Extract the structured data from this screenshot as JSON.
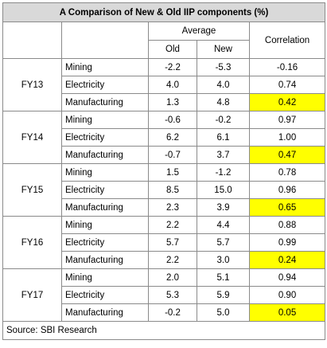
{
  "table": {
    "title": "A Comparison of New & Old IIP components (%)",
    "header": {
      "group_label": "Average",
      "old_label": "Old",
      "new_label": "New",
      "correlation_label": "Correlation"
    },
    "years": [
      {
        "label": "FY13",
        "rows": [
          {
            "component": "Mining",
            "old": "-2.2",
            "new": "-5.3",
            "correlation": "-0.16"
          },
          {
            "component": "Electricity",
            "old": "4.0",
            "new": "4.0",
            "correlation": "0.74"
          },
          {
            "component": "Manufacturing",
            "old": "1.3",
            "new": "4.8",
            "correlation": "0.42"
          }
        ]
      },
      {
        "label": "FY14",
        "rows": [
          {
            "component": "Mining",
            "old": "-0.6",
            "new": "-0.2",
            "correlation": "0.97"
          },
          {
            "component": "Electricity",
            "old": "6.2",
            "new": "6.1",
            "correlation": "1.00"
          },
          {
            "component": "Manufacturing",
            "old": "-0.7",
            "new": "3.7",
            "correlation": "0.47"
          }
        ]
      },
      {
        "label": "FY15",
        "rows": [
          {
            "component": "Mining",
            "old": "1.5",
            "new": "-1.2",
            "correlation": "0.78"
          },
          {
            "component": "Electricity",
            "old": "8.5",
            "new": "15.0",
            "correlation": "0.96"
          },
          {
            "component": "Manufacturing",
            "old": "2.3",
            "new": "3.9",
            "correlation": "0.65"
          }
        ]
      },
      {
        "label": "FY16",
        "rows": [
          {
            "component": "Mining",
            "old": "2.2",
            "new": "4.4",
            "correlation": "0.88"
          },
          {
            "component": "Electricity",
            "old": "5.7",
            "new": "5.7",
            "correlation": "0.99"
          },
          {
            "component": "Manufacturing",
            "old": "2.2",
            "new": "3.0",
            "correlation": "0.24"
          }
        ]
      },
      {
        "label": "FY17",
        "rows": [
          {
            "component": "Mining",
            "old": "2.0",
            "new": "5.1",
            "correlation": "0.94"
          },
          {
            "component": "Electricity",
            "old": "5.3",
            "new": "5.9",
            "correlation": "0.90"
          },
          {
            "component": "Manufacturing",
            "old": "-0.2",
            "new": "5.0",
            "correlation": "0.05"
          }
        ]
      }
    ],
    "highlight_color": "#ffff00",
    "highlighted_component": "Manufacturing",
    "source": "Source: SBI Research"
  }
}
